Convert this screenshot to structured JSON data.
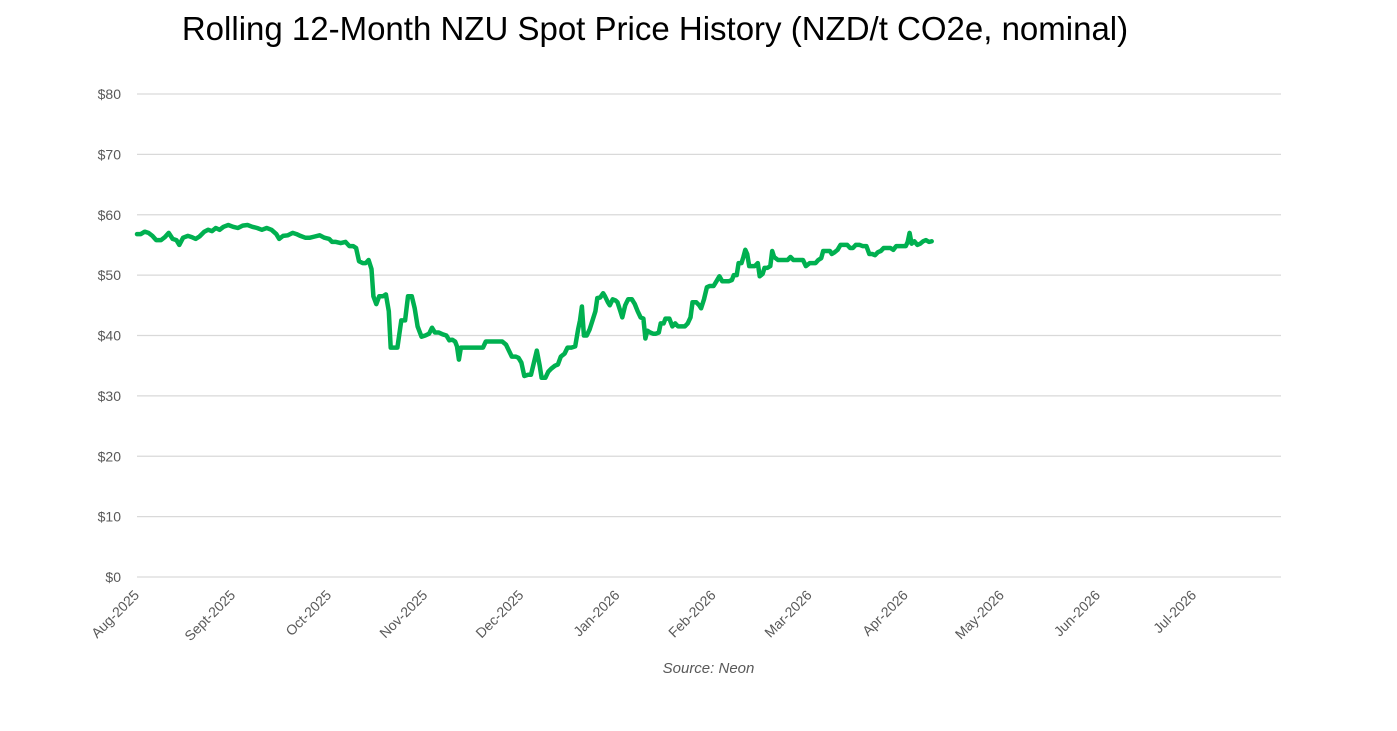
{
  "chart_data": {
    "type": "line",
    "title": "Rolling 12-Month NZU Spot Price History (NZD/t CO2e, nominal)",
    "source": "Source: Neon",
    "ylim": [
      0,
      80
    ],
    "y_ticks": [
      "$0",
      "$10",
      "$20",
      "$30",
      "$40",
      "$50",
      "$60",
      "$70",
      "$80"
    ],
    "x_ticks": [
      "Aug-2025",
      "Sept-2025",
      "Oct-2025",
      "Nov-2025",
      "Dec-2025",
      "Jan-2026",
      "Feb-2026",
      "Mar-2026",
      "Apr-2026",
      "May-2026",
      "Jun-2026",
      "Jul-2026"
    ],
    "grid": true,
    "legend": "none",
    "line_color": "#00b050",
    "series": [
      {
        "values": [
          [
            0.0,
            56.8
          ],
          [
            0.04,
            56.8
          ],
          [
            0.08,
            57.2
          ],
          [
            0.12,
            57.0
          ],
          [
            0.16,
            56.5
          ],
          [
            0.2,
            55.8
          ],
          [
            0.25,
            55.8
          ],
          [
            0.29,
            56.3
          ],
          [
            0.33,
            57.0
          ],
          [
            0.37,
            56.0
          ],
          [
            0.41,
            55.8
          ],
          [
            0.44,
            55.0
          ],
          [
            0.48,
            56.2
          ],
          [
            0.53,
            56.5
          ],
          [
            0.57,
            56.3
          ],
          [
            0.61,
            56.0
          ],
          [
            0.65,
            56.4
          ],
          [
            0.7,
            57.2
          ],
          [
            0.74,
            57.5
          ],
          [
            0.78,
            57.3
          ],
          [
            0.82,
            57.8
          ],
          [
            0.86,
            57.5
          ],
          [
            0.9,
            58.0
          ],
          [
            0.95,
            58.3
          ],
          [
            1.0,
            58.0
          ],
          [
            1.05,
            57.8
          ],
          [
            1.1,
            58.2
          ],
          [
            1.15,
            58.3
          ],
          [
            1.2,
            58.0
          ],
          [
            1.25,
            57.8
          ],
          [
            1.3,
            57.5
          ],
          [
            1.35,
            57.8
          ],
          [
            1.4,
            57.5
          ],
          [
            1.45,
            56.8
          ],
          [
            1.48,
            56.0
          ],
          [
            1.52,
            56.5
          ],
          [
            1.57,
            56.6
          ],
          [
            1.62,
            57.0
          ],
          [
            1.66,
            56.8
          ],
          [
            1.7,
            56.5
          ],
          [
            1.75,
            56.2
          ],
          [
            1.8,
            56.2
          ],
          [
            1.85,
            56.4
          ],
          [
            1.9,
            56.6
          ],
          [
            1.95,
            56.2
          ],
          [
            2.0,
            56.0
          ],
          [
            2.03,
            55.5
          ],
          [
            2.07,
            55.5
          ],
          [
            2.12,
            55.3
          ],
          [
            2.17,
            55.5
          ],
          [
            2.21,
            54.8
          ],
          [
            2.25,
            54.8
          ],
          [
            2.28,
            54.5
          ],
          [
            2.31,
            52.3
          ],
          [
            2.35,
            52.0
          ],
          [
            2.38,
            52.0
          ],
          [
            2.41,
            52.5
          ],
          [
            2.44,
            51.0
          ],
          [
            2.46,
            46.5
          ],
          [
            2.49,
            45.2
          ],
          [
            2.52,
            46.5
          ],
          [
            2.56,
            46.5
          ],
          [
            2.59,
            46.8
          ],
          [
            2.62,
            44.0
          ],
          [
            2.64,
            38.0
          ],
          [
            2.68,
            38.0
          ],
          [
            2.71,
            38.0
          ],
          [
            2.75,
            42.5
          ],
          [
            2.79,
            42.5
          ],
          [
            2.82,
            46.5
          ],
          [
            2.86,
            46.5
          ],
          [
            2.89,
            44.5
          ],
          [
            2.92,
            41.5
          ],
          [
            2.96,
            39.8
          ],
          [
            3.0,
            40.0
          ],
          [
            3.04,
            40.3
          ],
          [
            3.07,
            41.3
          ],
          [
            3.1,
            40.5
          ],
          [
            3.14,
            40.5
          ],
          [
            3.18,
            40.2
          ],
          [
            3.22,
            40.0
          ],
          [
            3.25,
            39.2
          ],
          [
            3.28,
            39.3
          ],
          [
            3.31,
            39.0
          ],
          [
            3.33,
            38.2
          ],
          [
            3.35,
            36.0
          ],
          [
            3.37,
            38.0
          ],
          [
            3.45,
            38.0
          ],
          [
            3.55,
            38.0
          ],
          [
            3.6,
            38.0
          ],
          [
            3.63,
            39.0
          ],
          [
            3.7,
            39.0
          ],
          [
            3.8,
            39.0
          ],
          [
            3.84,
            38.5
          ],
          [
            3.87,
            37.5
          ],
          [
            3.9,
            36.5
          ],
          [
            3.94,
            36.5
          ],
          [
            3.97,
            36.3
          ],
          [
            4.0,
            35.5
          ],
          [
            4.03,
            33.3
          ],
          [
            4.07,
            33.5
          ],
          [
            4.1,
            33.5
          ],
          [
            4.13,
            35.5
          ],
          [
            4.16,
            37.5
          ],
          [
            4.19,
            35.0
          ],
          [
            4.21,
            33.0
          ],
          [
            4.25,
            33.0
          ],
          [
            4.28,
            34.0
          ],
          [
            4.31,
            34.5
          ],
          [
            4.35,
            35.0
          ],
          [
            4.38,
            35.2
          ],
          [
            4.41,
            36.5
          ],
          [
            4.45,
            37.0
          ],
          [
            4.48,
            38.0
          ],
          [
            4.52,
            38.0
          ],
          [
            4.56,
            38.2
          ],
          [
            4.59,
            41.0
          ],
          [
            4.61,
            42.5
          ],
          [
            4.63,
            44.8
          ],
          [
            4.65,
            40.0
          ],
          [
            4.68,
            40.0
          ],
          [
            4.71,
            41.0
          ],
          [
            4.74,
            42.5
          ],
          [
            4.77,
            44.0
          ],
          [
            4.79,
            46.2
          ],
          [
            4.82,
            46.3
          ],
          [
            4.85,
            47.0
          ],
          [
            4.87,
            46.5
          ],
          [
            4.9,
            45.5
          ],
          [
            4.92,
            45.0
          ],
          [
            4.95,
            46.0
          ],
          [
            4.98,
            45.8
          ],
          [
            5.0,
            45.5
          ],
          [
            5.03,
            44.0
          ],
          [
            5.05,
            43.0
          ],
          [
            5.08,
            45.0
          ],
          [
            5.11,
            46.0
          ],
          [
            5.15,
            46.0
          ],
          [
            5.18,
            45.2
          ],
          [
            5.21,
            44.0
          ],
          [
            5.24,
            43.0
          ],
          [
            5.27,
            42.8
          ],
          [
            5.29,
            39.5
          ],
          [
            5.31,
            40.8
          ],
          [
            5.34,
            40.5
          ],
          [
            5.37,
            40.3
          ],
          [
            5.4,
            40.3
          ],
          [
            5.43,
            40.5
          ],
          [
            5.45,
            42.0
          ],
          [
            5.48,
            42.0
          ],
          [
            5.5,
            42.8
          ],
          [
            5.54,
            42.8
          ],
          [
            5.57,
            41.5
          ],
          [
            5.6,
            42.0
          ],
          [
            5.63,
            41.5
          ],
          [
            5.67,
            41.5
          ],
          [
            5.7,
            41.5
          ],
          [
            5.73,
            42.0
          ],
          [
            5.76,
            43.0
          ],
          [
            5.78,
            45.5
          ],
          [
            5.82,
            45.5
          ],
          [
            5.85,
            45.0
          ],
          [
            5.87,
            44.5
          ],
          [
            5.9,
            46.0
          ],
          [
            5.93,
            48.0
          ],
          [
            5.96,
            48.2
          ],
          [
            6.0,
            48.2
          ],
          [
            6.03,
            49.0
          ],
          [
            6.06,
            49.8
          ],
          [
            6.09,
            49.0
          ],
          [
            6.12,
            49.0
          ],
          [
            6.16,
            49.0
          ],
          [
            6.19,
            49.2
          ],
          [
            6.21,
            50.0
          ],
          [
            6.24,
            50.0
          ],
          [
            6.26,
            52.0
          ],
          [
            6.29,
            52.0
          ],
          [
            6.31,
            53.0
          ],
          [
            6.33,
            54.2
          ],
          [
            6.35,
            53.5
          ],
          [
            6.37,
            51.5
          ],
          [
            6.4,
            51.5
          ],
          [
            6.43,
            51.5
          ],
          [
            6.46,
            52.0
          ],
          [
            6.48,
            49.8
          ],
          [
            6.51,
            50.2
          ],
          [
            6.53,
            51.2
          ],
          [
            6.56,
            51.2
          ],
          [
            6.59,
            51.5
          ],
          [
            6.61,
            54.0
          ],
          [
            6.63,
            53.0
          ],
          [
            6.67,
            52.5
          ],
          [
            6.7,
            52.5
          ],
          [
            6.73,
            52.5
          ],
          [
            6.77,
            52.5
          ],
          [
            6.8,
            53.0
          ],
          [
            6.83,
            52.5
          ],
          [
            6.87,
            52.5
          ],
          [
            6.9,
            52.5
          ],
          [
            6.93,
            52.5
          ],
          [
            6.96,
            51.5
          ],
          [
            7.0,
            52.0
          ],
          [
            7.03,
            52.0
          ],
          [
            7.06,
            52.0
          ],
          [
            7.09,
            52.5
          ],
          [
            7.12,
            52.8
          ],
          [
            7.14,
            54.0
          ],
          [
            7.18,
            54.0
          ],
          [
            7.21,
            54.0
          ],
          [
            7.23,
            53.5
          ],
          [
            7.26,
            53.8
          ],
          [
            7.29,
            54.2
          ],
          [
            7.32,
            55.0
          ],
          [
            7.36,
            55.0
          ],
          [
            7.39,
            55.0
          ],
          [
            7.42,
            54.5
          ],
          [
            7.45,
            54.5
          ],
          [
            7.48,
            55.0
          ],
          [
            7.52,
            55.0
          ],
          [
            7.55,
            54.8
          ],
          [
            7.59,
            54.8
          ],
          [
            7.62,
            53.5
          ],
          [
            7.65,
            53.5
          ],
          [
            7.68,
            53.3
          ],
          [
            7.71,
            53.8
          ],
          [
            7.74,
            54.0
          ],
          [
            7.77,
            54.5
          ],
          [
            7.81,
            54.5
          ],
          [
            7.84,
            54.5
          ],
          [
            7.87,
            54.2
          ],
          [
            7.9,
            54.8
          ],
          [
            7.94,
            54.8
          ],
          [
            7.97,
            54.8
          ],
          [
            8.0,
            54.8
          ],
          [
            8.02,
            55.5
          ],
          [
            8.04,
            57.0
          ],
          [
            8.06,
            55.2
          ],
          [
            8.09,
            55.6
          ],
          [
            8.12,
            55.0
          ],
          [
            8.15,
            55.2
          ],
          [
            8.18,
            55.6
          ],
          [
            8.21,
            55.8
          ],
          [
            8.24,
            55.5
          ],
          [
            8.27,
            55.6
          ]
        ]
      }
    ]
  }
}
